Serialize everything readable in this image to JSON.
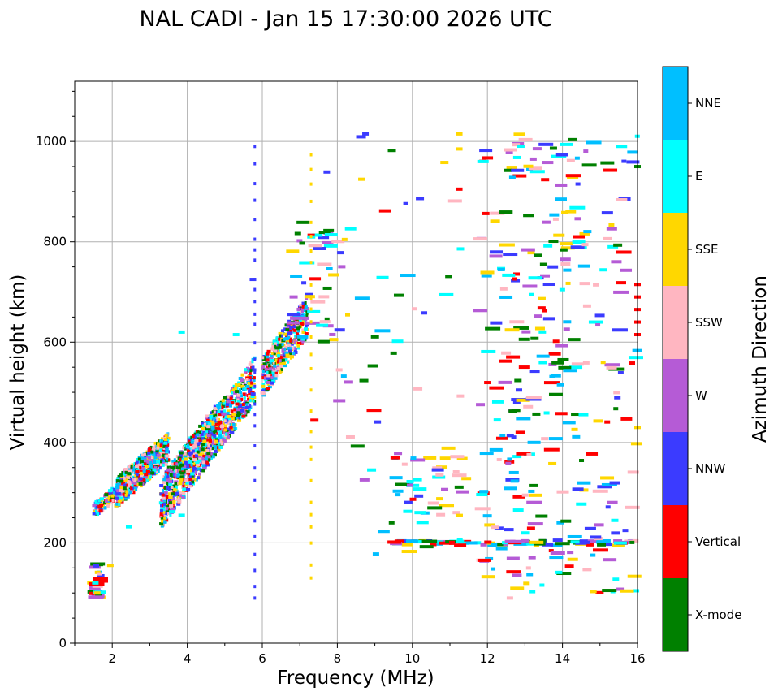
{
  "chart_data": {
    "type": "scatter",
    "title": "NAL CADI - Jan 15 17:30:00 2026 UTC",
    "xlabel": "Frequency (MHz)",
    "ylabel": "Virtual height (km)",
    "xlim": [
      1,
      16
    ],
    "ylim": [
      0,
      1120
    ],
    "x_ticks": [
      "2",
      "4",
      "6",
      "8",
      "10",
      "12",
      "14",
      "16"
    ],
    "y_ticks": [
      "0",
      "200",
      "400",
      "600",
      "800",
      "1000"
    ],
    "grid": true,
    "colorbar": {
      "label": "Azimuth Direction",
      "categories": [
        "X-mode",
        "Vertical",
        "NNW",
        "W",
        "SSW",
        "SSE",
        "E",
        "NNE"
      ],
      "colors": [
        "#008000",
        "#ff0000",
        "#3b3bff",
        "#b55bd6",
        "#ffb6c1",
        "#ffd700",
        "#00ffff",
        "#00bfff"
      ]
    },
    "clusters": [
      {
        "name": "low-F-trace",
        "x": [
          1.5,
          2.2
        ],
        "y": [
          250,
          320
        ],
        "n": 120
      },
      {
        "name": "F-trace-1",
        "x": [
          2.1,
          3.5
        ],
        "y": [
          270,
          420
        ],
        "n": 650
      },
      {
        "name": "F-trace-2",
        "x": [
          3.3,
          4.8
        ],
        "y": [
          230,
          480
        ],
        "n": 650
      },
      {
        "name": "F-trace-3",
        "x": [
          4.4,
          5.8
        ],
        "y": [
          340,
          570
        ],
        "n": 450
      },
      {
        "name": "F-upper",
        "x": [
          6.0,
          7.2
        ],
        "y": [
          490,
          690
        ],
        "n": 380
      },
      {
        "name": "upper-scatter",
        "x": [
          6.8,
          8.2
        ],
        "y": [
          600,
          850
        ],
        "n": 40
      },
      {
        "name": "low-echoes",
        "x": [
          1.5,
          1.7
        ],
        "y": [
          90,
          160
        ],
        "n": 25
      },
      {
        "name": "mid-scatter-300",
        "x": [
          9.5,
          11.5
        ],
        "y": [
          250,
          380
        ],
        "n": 40
      },
      {
        "name": "band-200",
        "x": [
          9.5,
          16
        ],
        "y": [
          195,
          205
        ],
        "n": 80
      },
      {
        "name": "far-scatter",
        "x": [
          11.8,
          16
        ],
        "y": [
          100,
          1020
        ],
        "n": 320
      },
      {
        "name": "sparse",
        "x": [
          7.2,
          11.5
        ],
        "y": [
          130,
          1020
        ],
        "n": 60
      }
    ],
    "columns": [
      {
        "name": "col-5.8",
        "x": 5.8,
        "y": [
          90,
          1010
        ]
      },
      {
        "name": "col-7.3",
        "x": 7.3,
        "y": [
          130,
          980
        ]
      }
    ],
    "isolated": [
      {
        "x": 1.6,
        "y": 100,
        "c": 5
      },
      {
        "x": 1.55,
        "y": 120,
        "c": 6
      },
      {
        "x": 1.95,
        "y": 155,
        "c": 5
      },
      {
        "x": 2.45,
        "y": 232,
        "c": 6
      },
      {
        "x": 3.6,
        "y": 262,
        "c": 6
      },
      {
        "x": 3.85,
        "y": 255,
        "c": 6
      },
      {
        "x": 3.85,
        "y": 620,
        "c": 6
      },
      {
        "x": 8.75,
        "y": 1015,
        "c": 2
      },
      {
        "x": 11.25,
        "y": 1015,
        "c": 5
      },
      {
        "x": 11.25,
        "y": 985,
        "c": 5
      },
      {
        "x": 11.25,
        "y": 905,
        "c": 1
      },
      {
        "x": 16,
        "y": 950,
        "c": 0
      },
      {
        "x": 16,
        "y": 715,
        "c": 1
      },
      {
        "x": 16,
        "y": 690,
        "c": 1
      },
      {
        "x": 16,
        "y": 665,
        "c": 1
      },
      {
        "x": 16,
        "y": 640,
        "c": 1
      },
      {
        "x": 16,
        "y": 615,
        "c": 1
      },
      {
        "x": 16,
        "y": 430,
        "c": 5
      },
      {
        "x": 12.6,
        "y": 90,
        "c": 4
      },
      {
        "x": 9.5,
        "y": 578,
        "c": 0
      },
      {
        "x": 5.75,
        "y": 725,
        "c": 2
      },
      {
        "x": 5.3,
        "y": 615,
        "c": 6
      }
    ]
  }
}
